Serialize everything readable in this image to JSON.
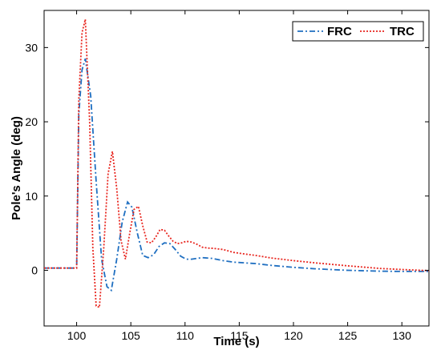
{
  "chart_data": {
    "type": "line",
    "title": "",
    "xlabel": "Time (s)",
    "ylabel": "Pole's Angle (deg)",
    "xlim": [
      97,
      132.5
    ],
    "ylim": [
      -7.5,
      35
    ],
    "x_ticks": [
      100,
      105,
      110,
      115,
      120,
      125,
      130
    ],
    "x_tick_labels": [
      "100",
      "105",
      "110",
      "115",
      "120",
      "125",
      "130"
    ],
    "y_ticks": [
      0,
      10,
      20,
      30
    ],
    "y_tick_labels": [
      "0",
      "10",
      "20",
      "30"
    ],
    "grid": false,
    "legend_position": "top-right",
    "series": [
      {
        "name": "FRC",
        "color": "#1f6fc1",
        "style": "dash-dot",
        "x": [
          97,
          100,
          100.2,
          100.5,
          100.8,
          101.3,
          101.8,
          102.3,
          102.8,
          103.2,
          103.7,
          104.2,
          104.7,
          105.1,
          105.6,
          106.1,
          106.6,
          107.1,
          107.6,
          108.1,
          108.6,
          109.1,
          109.6,
          110.1,
          110.6,
          111.1,
          111.6,
          112.5,
          113.5,
          114.5,
          115.5,
          116.5,
          118,
          120,
          122,
          125,
          128,
          130,
          132.5
        ],
        "y": [
          0.3,
          0.3,
          21,
          27,
          28.5,
          23.5,
          12,
          1.5,
          -2.2,
          -2.7,
          1.5,
          6.5,
          9.2,
          8.5,
          5,
          2,
          1.7,
          2.1,
          3.2,
          3.7,
          3.6,
          2.8,
          1.9,
          1.5,
          1.5,
          1.6,
          1.7,
          1.6,
          1.3,
          1.1,
          1.0,
          0.9,
          0.65,
          0.4,
          0.2,
          0,
          -0.12,
          -0.15,
          -0.15
        ]
      },
      {
        "name": "TRC",
        "color": "#e8261f",
        "style": "dotted",
        "x": [
          97,
          100,
          100.2,
          100.5,
          100.8,
          101.2,
          101.5,
          101.8,
          102.1,
          102.5,
          102.9,
          103.3,
          103.7,
          104.1,
          104.5,
          104.9,
          105.3,
          105.7,
          106.1,
          106.5,
          106.9,
          107.3,
          107.7,
          108.1,
          108.5,
          108.9,
          109.3,
          109.7,
          110.1,
          110.6,
          111.1,
          111.6,
          112.1,
          112.6,
          113.5,
          114.5,
          115.5,
          116.5,
          118,
          120,
          122,
          125,
          128,
          130,
          132.5
        ],
        "y": [
          0.3,
          0.3,
          23,
          32,
          33.8,
          20,
          3,
          -4.8,
          -5,
          3,
          13,
          16,
          11,
          4,
          1.5,
          5,
          8.2,
          8.6,
          6,
          3.8,
          3.7,
          4.5,
          5.5,
          5.4,
          4.6,
          3.9,
          3.6,
          3.7,
          3.9,
          3.8,
          3.5,
          3.1,
          3.0,
          2.95,
          2.8,
          2.4,
          2.2,
          2.0,
          1.65,
          1.3,
          1.0,
          0.6,
          0.25,
          0.1,
          -0.05
        ]
      }
    ]
  }
}
